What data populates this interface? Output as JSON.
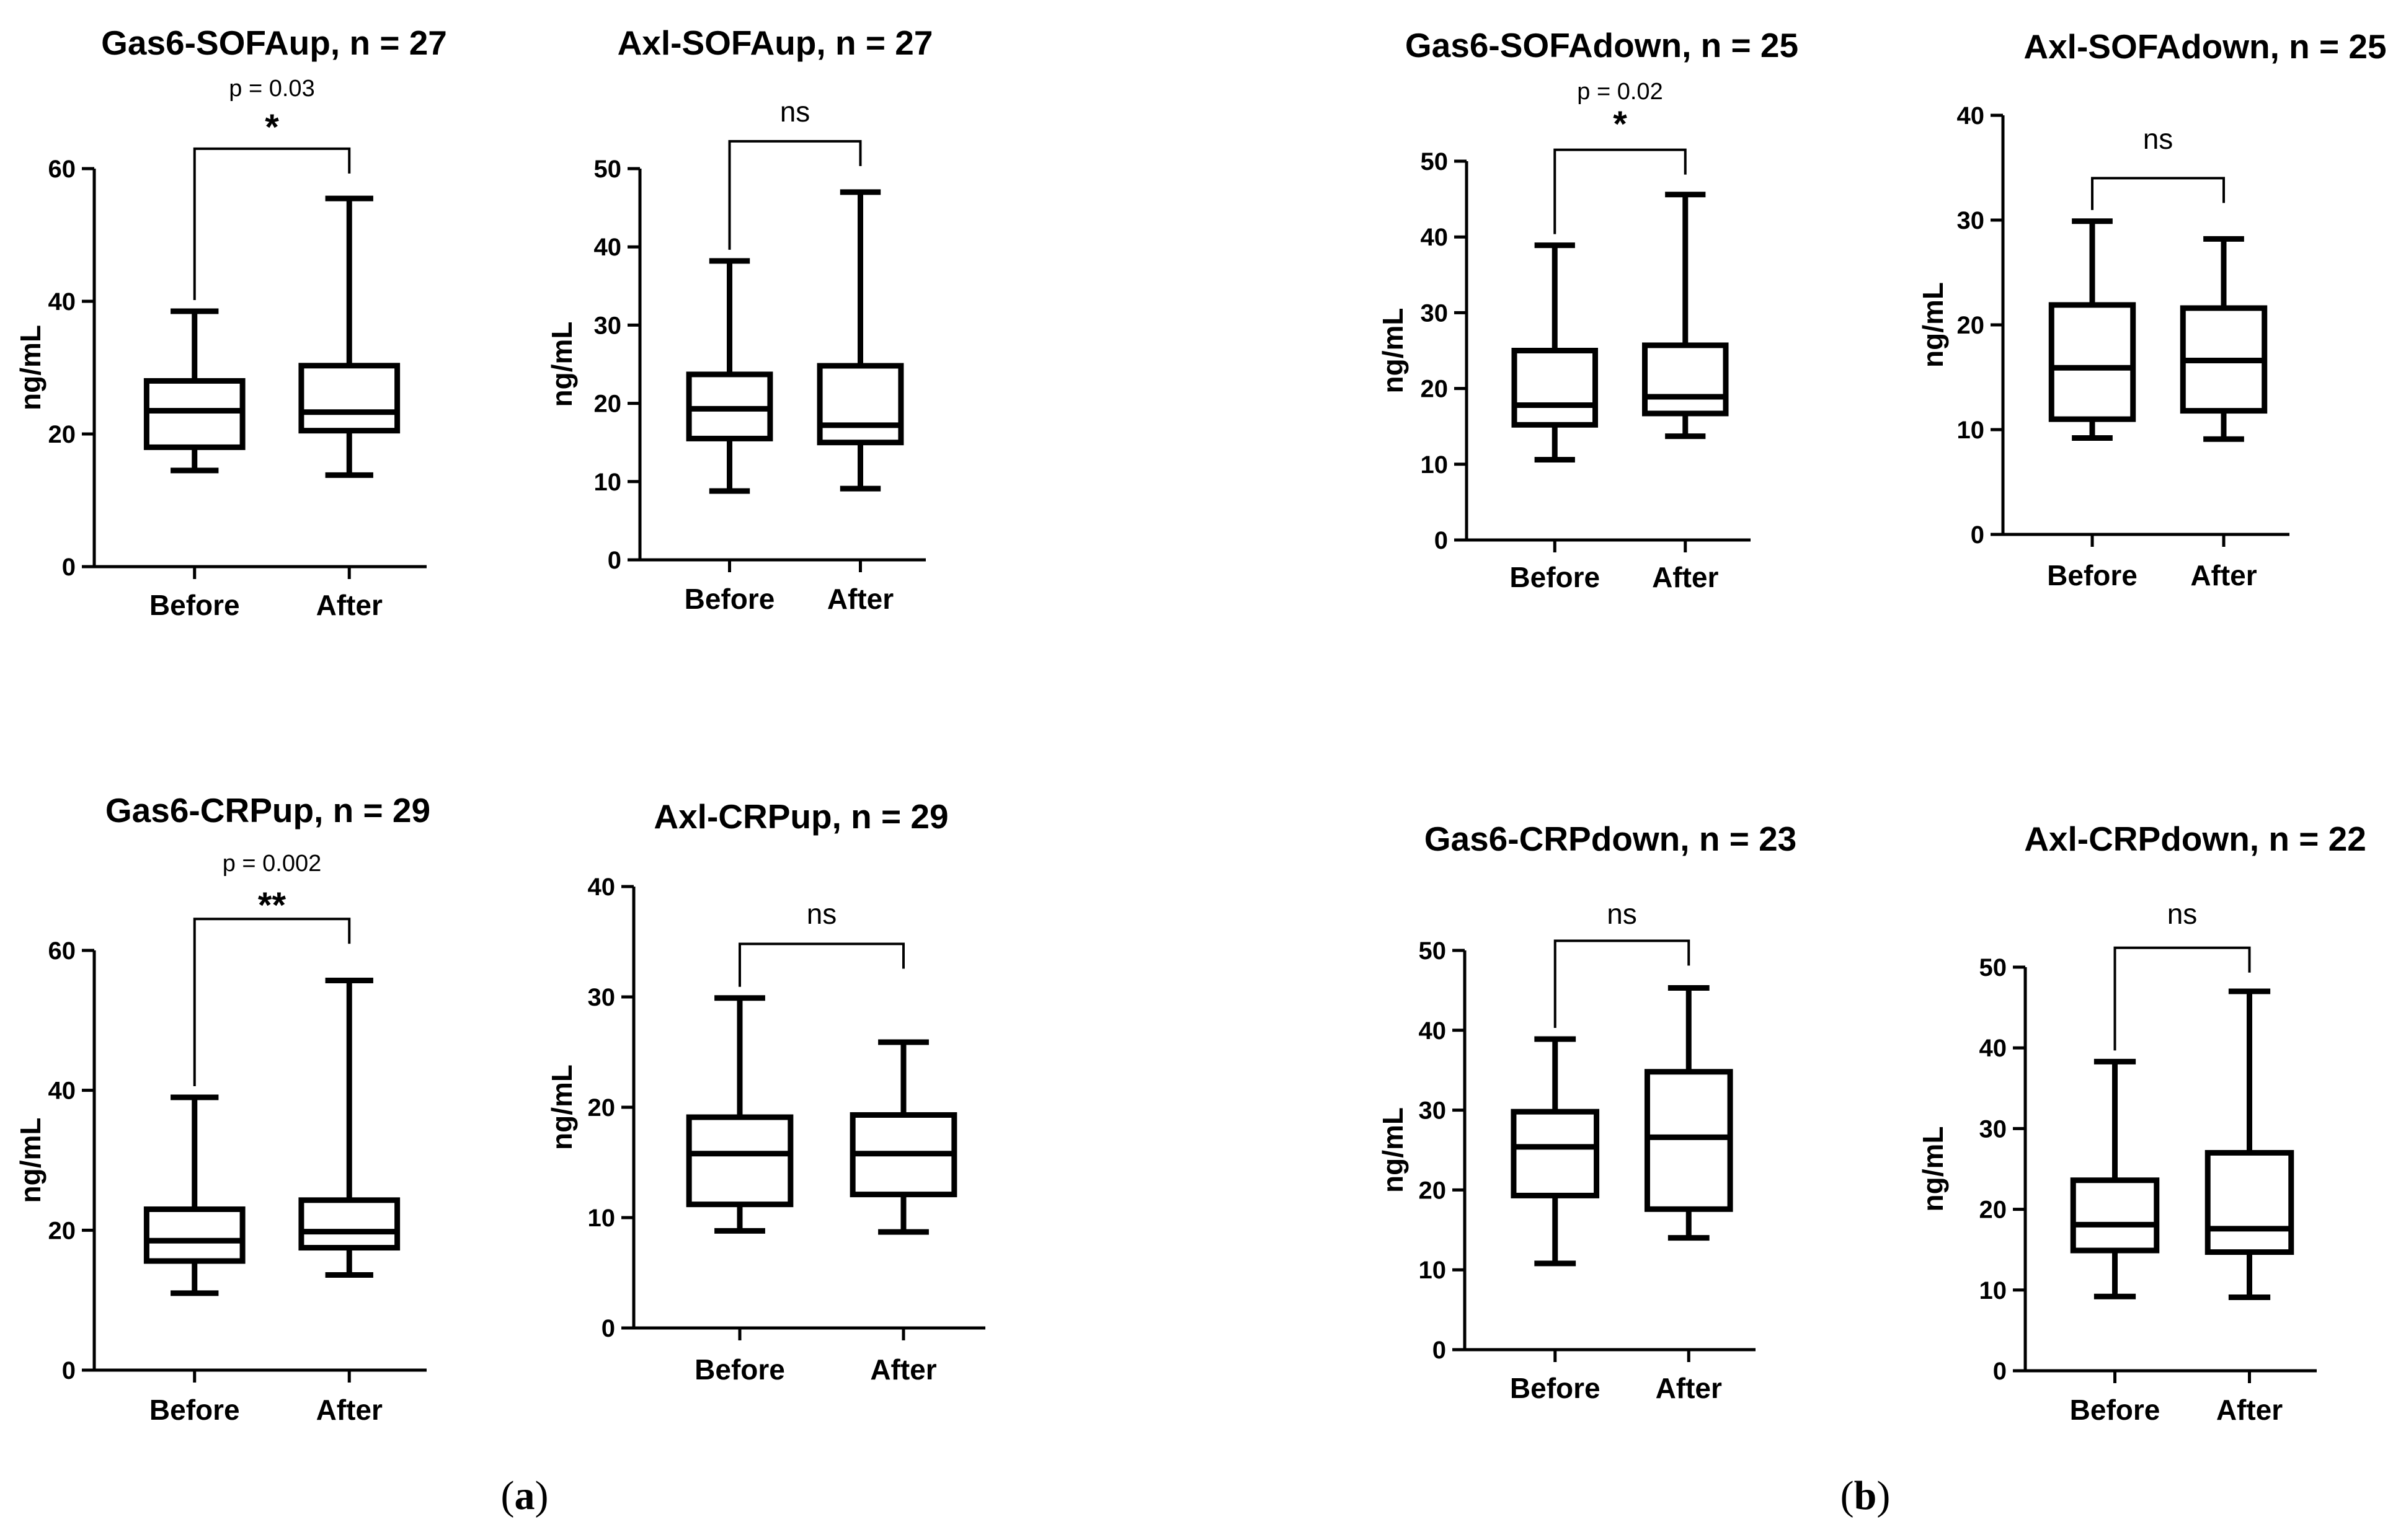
{
  "panel_labels": [
    {
      "open": "(",
      "letter": "a",
      "close": ")"
    },
    {
      "open": "(",
      "letter": "b",
      "close": ")"
    }
  ],
  "chart_data": [
    {
      "type": "box",
      "title": "Gas6-SOFAup, n = 27",
      "ylabel": "ng/mL",
      "ylim": [
        0,
        60
      ],
      "yticks": [
        0,
        20,
        40,
        60
      ],
      "categories": [
        "Before",
        "After"
      ],
      "boxes": [
        {
          "min": 14.5,
          "q1": 18,
          "median": 23.5,
          "q3": 28,
          "max": 38.5
        },
        {
          "min": 13.8,
          "q1": 20.5,
          "median": 23.3,
          "q3": 30.3,
          "max": 55.5
        }
      ],
      "bracket_y": 63,
      "p_text": "p = 0.03",
      "sig_text": "*"
    },
    {
      "type": "box",
      "title": "Axl-SOFAup, n = 27",
      "ylabel": "ng/mL",
      "ylim": [
        0,
        50
      ],
      "yticks": [
        0,
        10,
        20,
        30,
        40,
        50
      ],
      "categories": [
        "Before",
        "After"
      ],
      "boxes": [
        {
          "min": 8.8,
          "q1": 15.5,
          "median": 19.3,
          "q3": 23.7,
          "max": 38.2
        },
        {
          "min": 9.1,
          "q1": 15,
          "median": 17.2,
          "q3": 24.8,
          "max": 47
        }
      ],
      "bracket_y": 53.5,
      "p_text": "",
      "sig_text": "ns"
    },
    {
      "type": "box",
      "title": "Gas6-SOFAdown, n = 25",
      "ylabel": "ng/mL",
      "ylim": [
        0,
        50
      ],
      "yticks": [
        0,
        10,
        20,
        30,
        40,
        50
      ],
      "categories": [
        "Before",
        "After"
      ],
      "boxes": [
        {
          "min": 10.6,
          "q1": 15.2,
          "median": 17.8,
          "q3": 25,
          "max": 38.9
        },
        {
          "min": 13.7,
          "q1": 16.7,
          "median": 18.9,
          "q3": 25.7,
          "max": 45.6
        }
      ],
      "bracket_y": 51.5,
      "p_text": "p = 0.02",
      "sig_text": "*"
    },
    {
      "type": "box",
      "title": "Axl-SOFAdown, n = 25",
      "ylabel": "ng/mL",
      "ylim": [
        0,
        40
      ],
      "yticks": [
        0,
        10,
        20,
        30,
        40
      ],
      "categories": [
        "Before",
        "After"
      ],
      "boxes": [
        {
          "min": 9.2,
          "q1": 11,
          "median": 15.9,
          "q3": 21.9,
          "max": 29.9
        },
        {
          "min": 9.1,
          "q1": 11.8,
          "median": 16.6,
          "q3": 21.6,
          "max": 28.2
        }
      ],
      "bracket_y": 34,
      "p_text": "",
      "sig_text": "ns"
    },
    {
      "type": "box",
      "title": "Gas6-CRPup, n = 29",
      "ylabel": "ng/mL",
      "ylim": [
        0,
        60
      ],
      "yticks": [
        0,
        20,
        40,
        60
      ],
      "categories": [
        "Before",
        "After"
      ],
      "boxes": [
        {
          "min": 11,
          "q1": 15.6,
          "median": 18.5,
          "q3": 23,
          "max": 39
        },
        {
          "min": 13.6,
          "q1": 17.5,
          "median": 19.8,
          "q3": 24.3,
          "max": 55.7
        }
      ],
      "bracket_y": 64.5,
      "p_text": "p = 0.002",
      "sig_text": "**"
    },
    {
      "type": "box",
      "title": "Axl-CRPup, n = 29",
      "ylabel": "ng/mL",
      "ylim": [
        0,
        40
      ],
      "yticks": [
        0,
        10,
        20,
        30,
        40
      ],
      "categories": [
        "Before",
        "After"
      ],
      "boxes": [
        {
          "min": 8.8,
          "q1": 11.2,
          "median": 15.8,
          "q3": 19.1,
          "max": 29.9
        },
        {
          "min": 8.7,
          "q1": 12.1,
          "median": 15.8,
          "q3": 19.3,
          "max": 25.9
        }
      ],
      "bracket_y": 34.8,
      "p_text": "",
      "sig_text": "ns"
    },
    {
      "type": "box",
      "title": "Gas6-CRPdown, n = 23",
      "ylabel": "ng/mL",
      "ylim": [
        0,
        50
      ],
      "yticks": [
        0,
        10,
        20,
        30,
        40,
        50
      ],
      "categories": [
        "Before",
        "After"
      ],
      "boxes": [
        {
          "min": 10.8,
          "q1": 19.3,
          "median": 25.4,
          "q3": 29.8,
          "max": 38.9
        },
        {
          "min": 14,
          "q1": 17.6,
          "median": 26.6,
          "q3": 34.8,
          "max": 45.3
        }
      ],
      "bracket_y": 51.2,
      "p_text": "",
      "sig_text": "ns"
    },
    {
      "type": "box",
      "title": "Axl-CRPdown, n = 22",
      "ylabel": "ng/mL",
      "ylim": [
        0,
        50
      ],
      "yticks": [
        0,
        10,
        20,
        30,
        40,
        50
      ],
      "categories": [
        "Before",
        "After"
      ],
      "boxes": [
        {
          "min": 9.2,
          "q1": 14.9,
          "median": 18.1,
          "q3": 23.6,
          "max": 38.3
        },
        {
          "min": 9.1,
          "q1": 14.7,
          "median": 17.6,
          "q3": 27,
          "max": 47
        }
      ],
      "bracket_y": 52.4,
      "p_text": "",
      "sig_text": "ns"
    }
  ]
}
